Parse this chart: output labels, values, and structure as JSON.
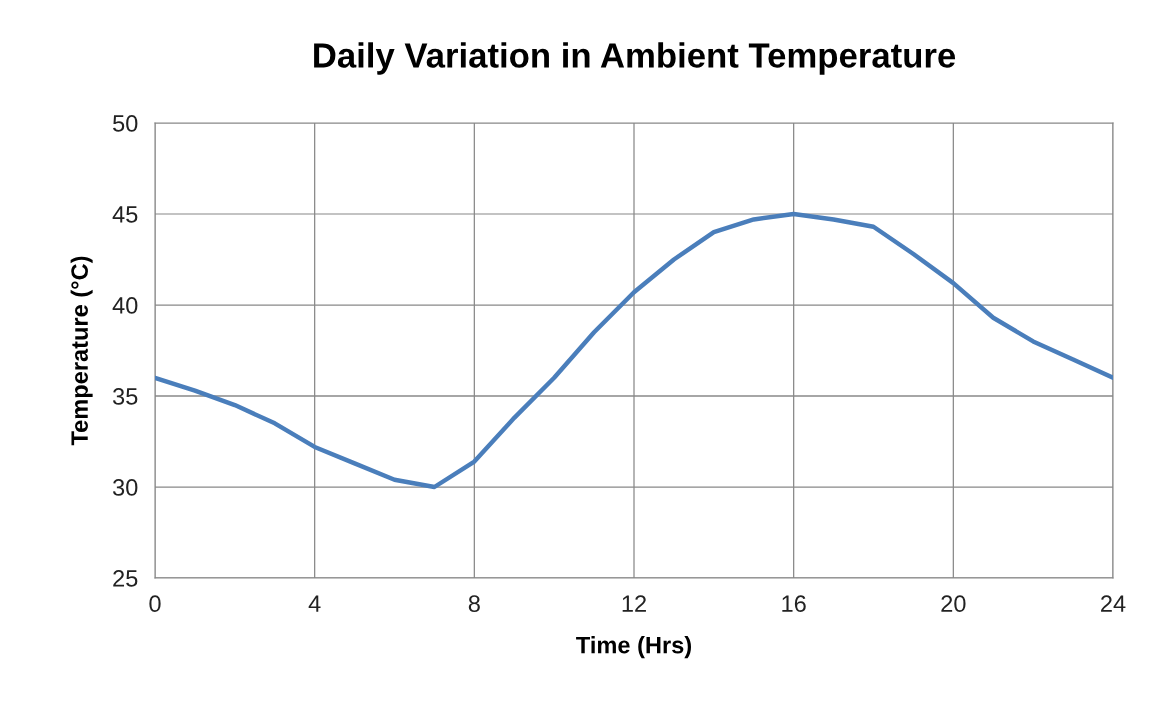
{
  "chart_data": {
    "type": "line",
    "title": "Daily Variation in Ambient Temperature",
    "xlabel": "Time (Hrs)",
    "ylabel": "Temperature (°C)",
    "x": [
      0,
      1,
      2,
      3,
      4,
      5,
      6,
      7,
      8,
      9,
      10,
      11,
      12,
      13,
      14,
      15,
      16,
      17,
      18,
      19,
      20,
      21,
      22,
      23,
      24
    ],
    "series": [
      {
        "color": "#4a7ebb",
        "values": [
          36,
          35.3,
          34.5,
          33.5,
          32.2,
          31.3,
          30.4,
          30,
          31.4,
          33.8,
          36,
          38.5,
          40.7,
          42.5,
          44,
          44.7,
          45,
          44.7,
          44.3,
          42.8,
          41.2,
          39.3,
          38,
          37,
          36
        ]
      }
    ],
    "xlim": [
      0,
      24
    ],
    "xticks": [
      0,
      4,
      8,
      12,
      16,
      20,
      24
    ],
    "ylim": [
      25,
      50
    ],
    "yticks": [
      25,
      30,
      35,
      40,
      45,
      50
    ],
    "grid": true,
    "marker": "none",
    "line_style": "solid"
  }
}
